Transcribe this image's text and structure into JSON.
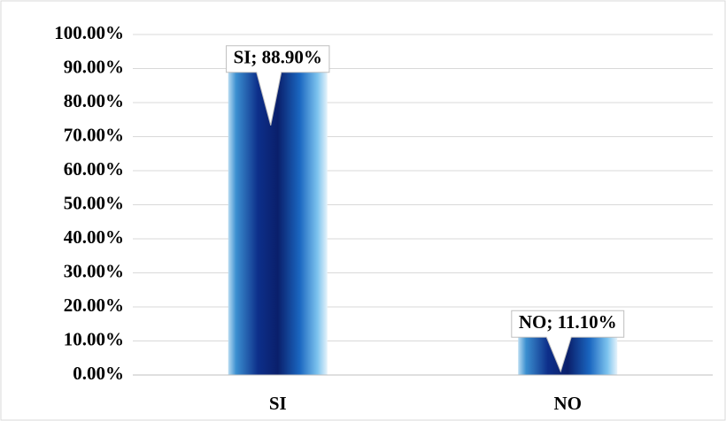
{
  "chart_data": {
    "type": "bar",
    "categories": [
      "SI",
      "NO"
    ],
    "values": [
      88.9,
      11.1
    ],
    "value_labels": [
      "SI; 88.90%",
      "NO; 11.10%"
    ],
    "ylim": [
      0,
      100
    ],
    "yticks": [
      {
        "value": 0,
        "label": "0.00%"
      },
      {
        "value": 10,
        "label": "10.00%"
      },
      {
        "value": 20,
        "label": "20.00%"
      },
      {
        "value": 30,
        "label": "30.00%"
      },
      {
        "value": 40,
        "label": "40.00%"
      },
      {
        "value": 50,
        "label": "50.00%"
      },
      {
        "value": 60,
        "label": "60.00%"
      },
      {
        "value": 70,
        "label": "70.00%"
      },
      {
        "value": 80,
        "label": "80.00%"
      },
      {
        "value": 90,
        "label": "90.00%"
      },
      {
        "value": 100,
        "label": "100.00%"
      }
    ],
    "grid": true
  }
}
